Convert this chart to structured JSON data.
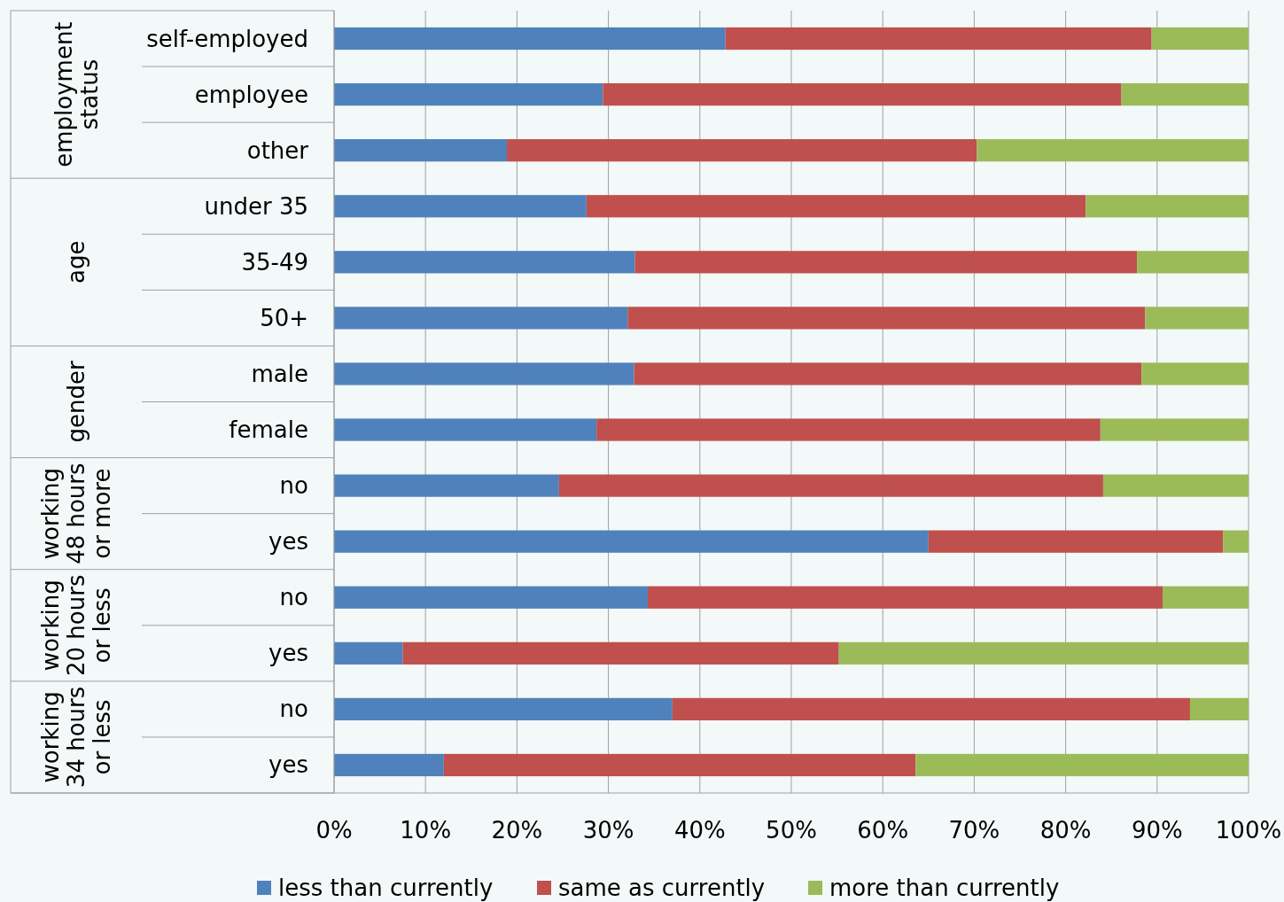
{
  "chart_data": {
    "type": "bar",
    "orientation": "horizontal",
    "stacked": true,
    "categories": [
      "self-employed",
      "employee",
      "other",
      "under 35",
      "35-49",
      "50+",
      "male",
      "female",
      "no",
      "yes",
      "no",
      "yes",
      "no",
      "yes"
    ],
    "series": [
      {
        "name": "less than currently",
        "color": "#4f81bd",
        "values": [
          42.8,
          29.4,
          18.9,
          27.6,
          32.9,
          32.1,
          32.8,
          28.7,
          24.6,
          65.0,
          34.3,
          7.5,
          37.0,
          12.0
        ]
      },
      {
        "name": "same as currently",
        "color": "#c0504d",
        "values": [
          46.6,
          56.7,
          51.4,
          54.6,
          54.9,
          56.6,
          55.5,
          55.1,
          59.5,
          32.2,
          56.3,
          47.7,
          56.6,
          51.6
        ]
      },
      {
        "name": "more than currently",
        "color": "#9bbb59",
        "values": [
          10.6,
          13.9,
          29.7,
          17.8,
          12.2,
          11.3,
          11.7,
          16.2,
          15.9,
          2.8,
          9.4,
          44.8,
          6.4,
          36.4
        ]
      }
    ],
    "xlim": [
      0,
      100
    ],
    "xticks": [
      {
        "value": 0,
        "label": "0%"
      },
      {
        "value": 10,
        "label": "10%"
      },
      {
        "value": 20,
        "label": "20%"
      },
      {
        "value": 30,
        "label": "30%"
      },
      {
        "value": 40,
        "label": "40%"
      },
      {
        "value": 50,
        "label": "50%"
      },
      {
        "value": 60,
        "label": "60%"
      },
      {
        "value": 70,
        "label": "70%"
      },
      {
        "value": 80,
        "label": "80%"
      },
      {
        "value": 90,
        "label": "90%"
      },
      {
        "value": 100,
        "label": "100%"
      }
    ],
    "annotations": [
      "employment status",
      "age",
      "gender",
      "working 48 hours or more",
      "working 20 hours or less",
      "working 34 hours or less"
    ],
    "grid": "x",
    "legend": "bottom"
  }
}
